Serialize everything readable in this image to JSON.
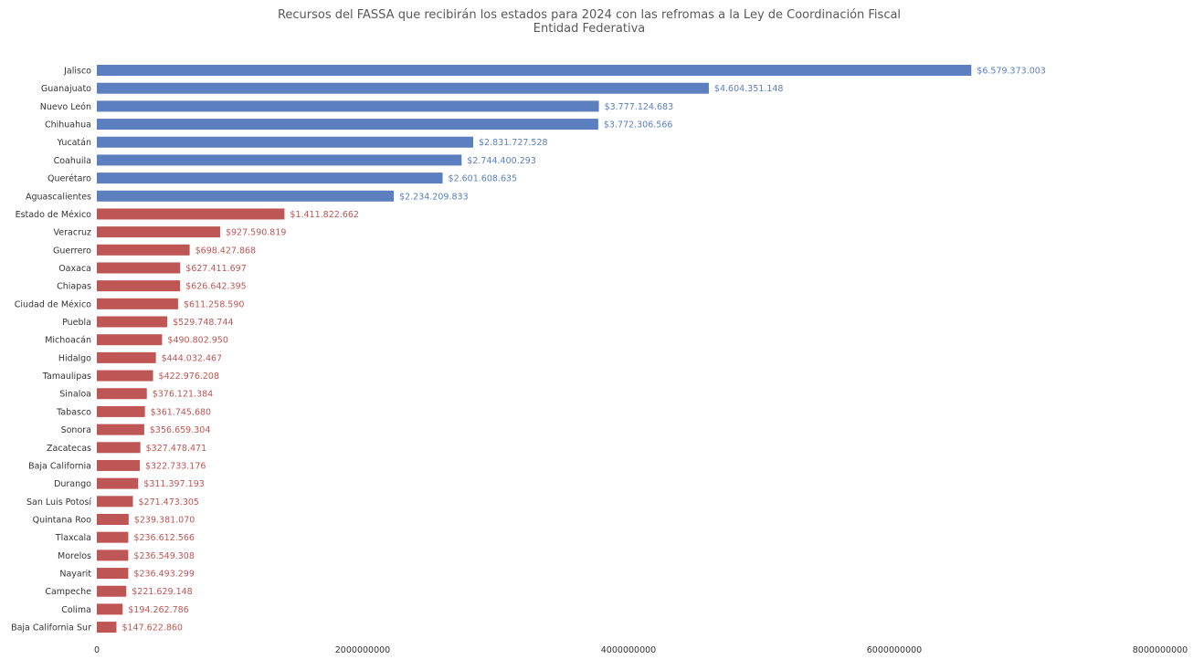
{
  "chart_data": {
    "type": "bar",
    "orientation": "horizontal",
    "title": "Recursos del FASSA que recibirán los estados para 2024 con las refromas a la Ley de Coordinación Fiscal",
    "subtitle": "Entidad Federativa",
    "xlabel": "",
    "ylabel": "",
    "xlim": [
      0,
      8000000000
    ],
    "x_ticks": [
      "0",
      "2000000000",
      "4000000000",
      "6000000000",
      "8000000000"
    ],
    "grid": false,
    "legend": "none",
    "colors": {
      "increase": "#5b7fbf",
      "decrease": "#bd5654"
    },
    "categories": [
      "Jalisco",
      "Guanajuato",
      "Nuevo León",
      "Chihuahua",
      "Yucatán",
      "Coahuila",
      "Querétaro",
      "Aguascalientes",
      "Estado de México",
      "Veracruz",
      "Guerrero",
      "Oaxaca",
      "Chiapas",
      "Ciudad de México",
      "Puebla",
      "Michoacán",
      "Hidalgo",
      "Tamaulipas",
      "Sinaloa",
      "Tabasco",
      "Sonora",
      "Zacatecas",
      "Baja California",
      "Durango",
      "San Luis Potosí",
      "Quintana Roo",
      "Tlaxcala",
      "Morelos",
      "Nayarit",
      "Campeche",
      "Colima",
      "Baja California Sur"
    ],
    "values": [
      6579373003,
      4604351148,
      3777124683,
      3772306566,
      2831727528,
      2744400293,
      2601608635,
      2234209833,
      1411822662,
      927590819,
      698427868,
      627411697,
      626642395,
      611258590,
      529748744,
      490802950,
      444032467,
      422976208,
      376121384,
      361745680,
      356659304,
      327478471,
      322733176,
      311397193,
      271473305,
      239381070,
      236612566,
      236549308,
      236493299,
      221629148,
      194262786,
      147622860
    ],
    "data_labels": [
      "$6.579.373.003",
      "$4.604.351.148",
      "$3.777.124.683",
      "$3.772.306.566",
      "$2.831.727.528",
      "$2.744.400.293",
      "$2.601.608.635",
      "$2.234.209.833",
      "$1.411.822.662",
      "$927.590.819",
      "$698.427.868",
      "$627.411.697",
      "$626.642.395",
      "$611.258.590",
      "$529.748.744",
      "$490.802.950",
      "$444.032.467",
      "$422.976.208",
      "$376.121.384",
      "$361.745.680",
      "$356.659.304",
      "$327.478.471",
      "$322.733.176",
      "$311.397.193",
      "$271.473.305",
      "$239.381.070",
      "$236.612.566",
      "$236.549.308",
      "$236.493.299",
      "$221.629.148",
      "$194.262.786",
      "$147.622.860"
    ],
    "color_group": [
      "increase",
      "increase",
      "increase",
      "increase",
      "increase",
      "increase",
      "increase",
      "increase",
      "decrease",
      "decrease",
      "decrease",
      "decrease",
      "decrease",
      "decrease",
      "decrease",
      "decrease",
      "decrease",
      "decrease",
      "decrease",
      "decrease",
      "decrease",
      "decrease",
      "decrease",
      "decrease",
      "decrease",
      "decrease",
      "decrease",
      "decrease",
      "decrease",
      "decrease",
      "decrease",
      "decrease"
    ]
  }
}
